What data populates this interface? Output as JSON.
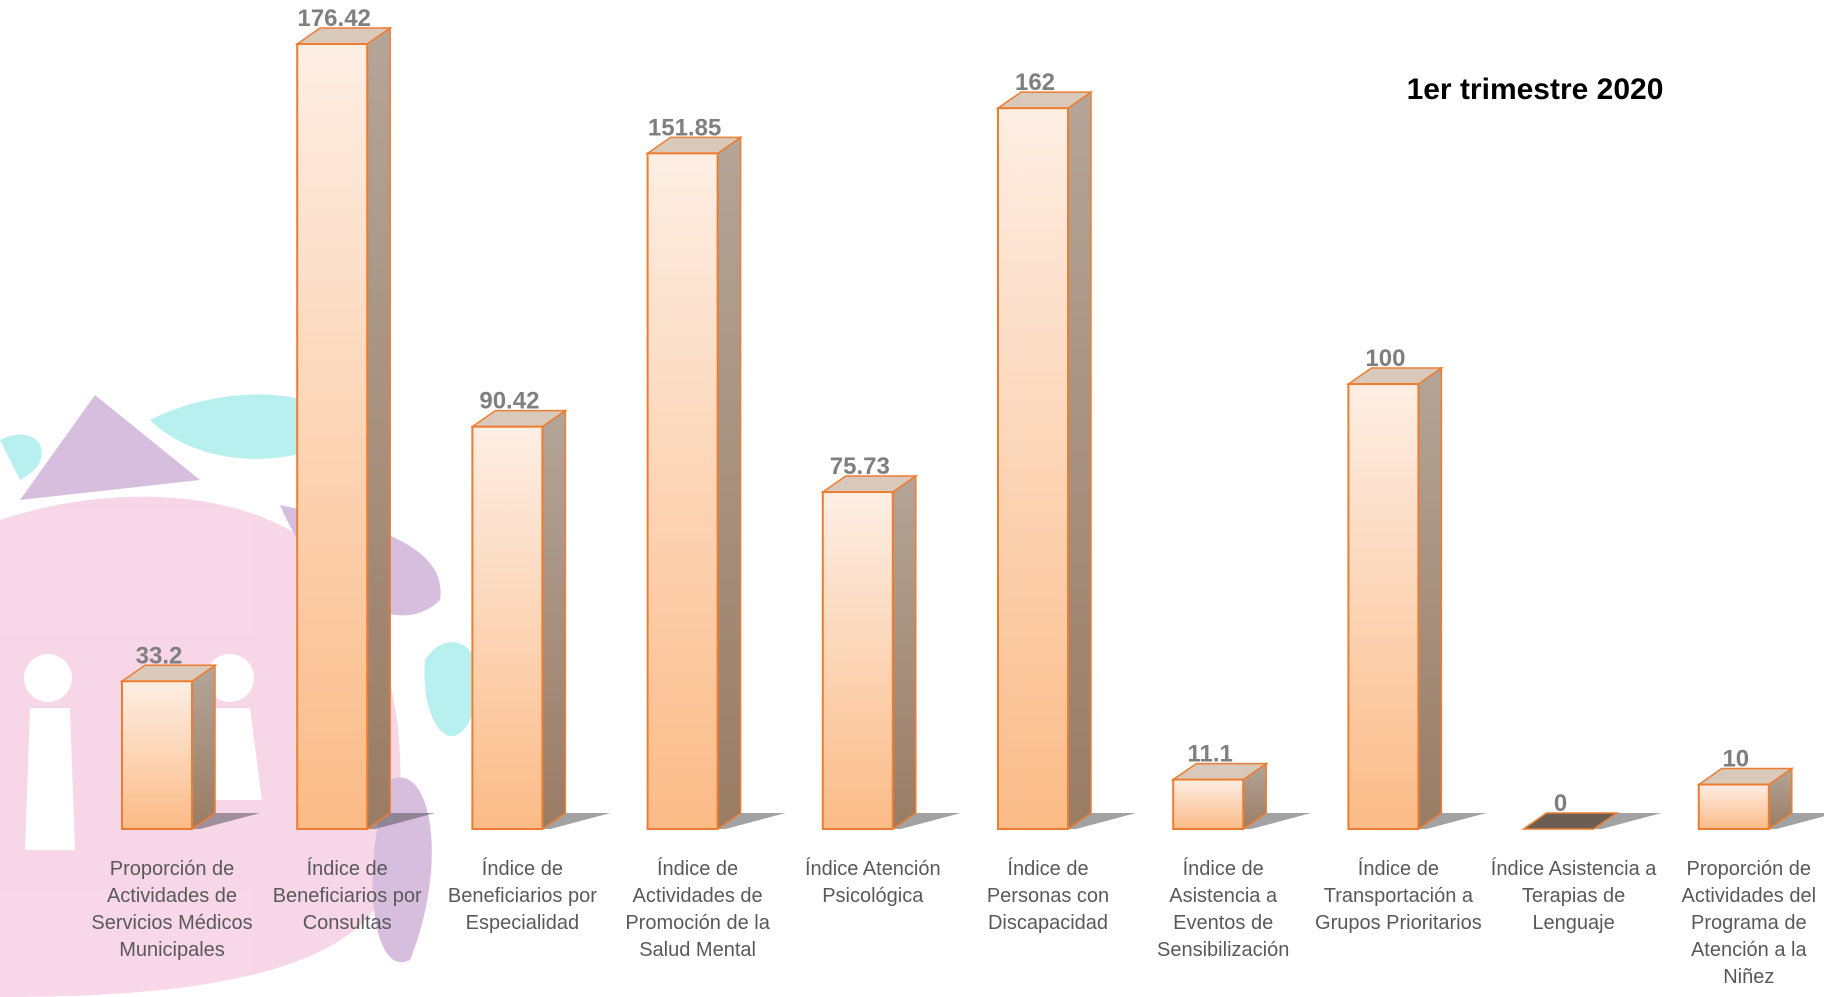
{
  "chart_data": {
    "type": "bar3d",
    "title": "1er trimestre 2020",
    "categories": [
      "Proporción de Actividades de Servicios Médicos Municipales",
      "Índice de Beneficiarios por Consultas",
      "Índice de Beneficiarios por Especialidad",
      "Índice de Actividades de Promoción de la Salud Mental",
      "Índice Atención Psicológica",
      "Índice de Personas con Discapacidad",
      "Índice de Asistencia a Eventos de Sensibilización",
      "Índice de Transportación a Grupos Prioritarios",
      "Índice Asistencia a Terapias de Lenguaje",
      "Proporción de Actividades del Programa de Atención a la Niñez"
    ],
    "values": [
      33.2,
      176.42,
      90.42,
      151.85,
      75.73,
      162,
      11.1,
      100,
      0,
      10
    ],
    "color": "#ed7d31"
  }
}
